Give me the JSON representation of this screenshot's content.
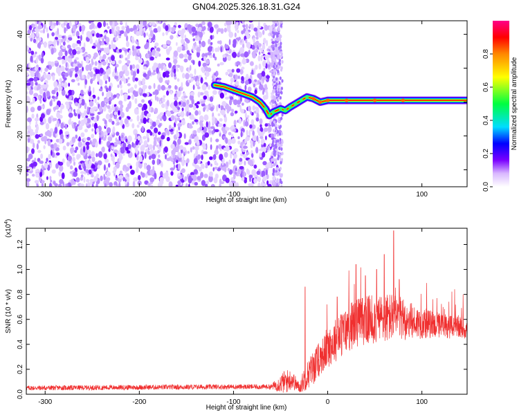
{
  "title": "GN04.2025.326.18.31.G24",
  "colors": {
    "snr_line": "#f03030",
    "axis": "#000000",
    "background": "#ffffff"
  },
  "chart_data": [
    {
      "type": "heatmap",
      "name": "spectrogram",
      "xlabel": "Height of straight line (km)",
      "ylabel": "Frequency (Hz)",
      "xlim": [
        -320,
        148
      ],
      "ylim": [
        -50,
        48
      ],
      "x_ticks": [
        -300,
        -200,
        -100,
        0,
        100
      ],
      "x_tick_labels": [
        "-300",
        "-200",
        "-100",
        "0",
        "100"
      ],
      "y_ticks": [
        -40,
        -20,
        0,
        20,
        40
      ],
      "y_tick_labels": [
        "-40",
        "-20",
        "0",
        "20",
        "40"
      ],
      "noise_region_x": [
        -320,
        -50
      ],
      "signal_track": [
        {
          "x": -120,
          "y": 10
        },
        {
          "x": -110,
          "y": 9
        },
        {
          "x": -100,
          "y": 7
        },
        {
          "x": -90,
          "y": 5
        },
        {
          "x": -80,
          "y": 3
        },
        {
          "x": -72,
          "y": 0
        },
        {
          "x": -66,
          "y": -4
        },
        {
          "x": -62,
          "y": -8
        },
        {
          "x": -58,
          "y": -6
        },
        {
          "x": -50,
          "y": -4
        },
        {
          "x": -45,
          "y": -5
        },
        {
          "x": -40,
          "y": -3
        },
        {
          "x": -34,
          "y": -1
        },
        {
          "x": -28,
          "y": 1
        },
        {
          "x": -22,
          "y": 3
        },
        {
          "x": -15,
          "y": 2
        },
        {
          "x": -8,
          "y": 0
        },
        {
          "x": 0,
          "y": 1
        },
        {
          "x": 20,
          "y": 1
        },
        {
          "x": 50,
          "y": 1
        },
        {
          "x": 80,
          "y": 1
        },
        {
          "x": 110,
          "y": 1
        },
        {
          "x": 148,
          "y": 1
        }
      ],
      "colorbar": {
        "label": "Normalized spectral amplitude",
        "range": [
          0.0,
          1.0
        ],
        "ticks": [
          0.0,
          0.2,
          0.4,
          0.6,
          0.8
        ],
        "tick_labels": [
          "0.0",
          "0.2",
          "0.4",
          "0.6",
          "0.8"
        ]
      }
    },
    {
      "type": "line",
      "name": "snr",
      "xlabel": "Height of straight line (km)",
      "ylabel": "SNR (10 * v/v)",
      "y_multiplier_base": "(x10",
      "y_multiplier_exp": "4",
      "y_multiplier_close": ")",
      "xlim": [
        -320,
        148
      ],
      "ylim": [
        0,
        1.33
      ],
      "x_ticks": [
        -300,
        -200,
        -100,
        0,
        100
      ],
      "x_tick_labels": [
        "-300",
        "-200",
        "-100",
        "0",
        "100"
      ],
      "y_ticks": [
        0.0,
        0.2,
        0.4,
        0.6,
        0.8,
        1.0,
        1.2
      ],
      "y_tick_labels": [
        "0.0",
        "0.2",
        "0.4",
        "0.6",
        "0.8",
        "1.0",
        "1.2"
      ],
      "series": [
        {
          "name": "SNR",
          "envelope": [
            {
              "x": -320,
              "base": 0.05,
              "amp": 0.02
            },
            {
              "x": -100,
              "base": 0.06,
              "amp": 0.02
            },
            {
              "x": -60,
              "base": 0.06,
              "amp": 0.02
            },
            {
              "x": -45,
              "base": 0.1,
              "amp": 0.1
            },
            {
              "x": -38,
              "base": 0.12,
              "amp": 0.08
            },
            {
              "x": -30,
              "base": 0.05,
              "amp": 0.04
            },
            {
              "x": -25,
              "base": 0.12,
              "amp": 0.1
            },
            {
              "x": -15,
              "base": 0.22,
              "amp": 0.14
            },
            {
              "x": -5,
              "base": 0.32,
              "amp": 0.14
            },
            {
              "x": 10,
              "base": 0.45,
              "amp": 0.18
            },
            {
              "x": 30,
              "base": 0.58,
              "amp": 0.2
            },
            {
              "x": 50,
              "base": 0.6,
              "amp": 0.2
            },
            {
              "x": 70,
              "base": 0.62,
              "amp": 0.2
            },
            {
              "x": 90,
              "base": 0.58,
              "amp": 0.14
            },
            {
              "x": 120,
              "base": 0.55,
              "amp": 0.1
            },
            {
              "x": 148,
              "base": 0.52,
              "amp": 0.08
            }
          ],
          "peaks": [
            {
              "x": -24,
              "y": 0.86
            },
            {
              "x": 30,
              "y": 1.04
            },
            {
              "x": 52,
              "y": 1.0
            },
            {
              "x": 60,
              "y": 1.12
            },
            {
              "x": 70,
              "y": 1.31
            },
            {
              "x": 76,
              "y": 0.92
            },
            {
              "x": 40,
              "y": 0.95
            },
            {
              "x": 10,
              "y": 0.78
            }
          ]
        }
      ]
    }
  ]
}
